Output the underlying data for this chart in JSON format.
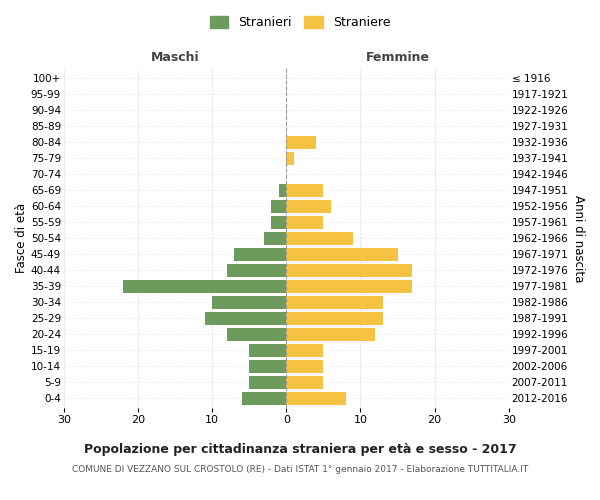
{
  "age_groups": [
    "100+",
    "95-99",
    "90-94",
    "85-89",
    "80-84",
    "75-79",
    "70-74",
    "65-69",
    "60-64",
    "55-59",
    "50-54",
    "45-49",
    "40-44",
    "35-39",
    "30-34",
    "25-29",
    "20-24",
    "15-19",
    "10-14",
    "5-9",
    "0-4"
  ],
  "birth_years": [
    "≤ 1916",
    "1917-1921",
    "1922-1926",
    "1927-1931",
    "1932-1936",
    "1937-1941",
    "1942-1946",
    "1947-1951",
    "1952-1956",
    "1957-1961",
    "1962-1966",
    "1967-1971",
    "1972-1976",
    "1977-1981",
    "1982-1986",
    "1987-1991",
    "1992-1996",
    "1997-2001",
    "2002-2006",
    "2007-2011",
    "2012-2016"
  ],
  "males": [
    0,
    0,
    0,
    0,
    0,
    0,
    0,
    1,
    2,
    2,
    3,
    7,
    8,
    22,
    10,
    11,
    8,
    5,
    5,
    5,
    6
  ],
  "females": [
    0,
    0,
    0,
    0,
    4,
    1,
    0,
    5,
    6,
    5,
    9,
    15,
    17,
    17,
    13,
    13,
    12,
    5,
    5,
    5,
    8
  ],
  "male_color": "#6d9b5e",
  "female_color": "#f5c242",
  "title": "Popolazione per cittadinanza straniera per età e sesso - 2017",
  "subtitle": "COMUNE DI VEZZANO SUL CROSTOLO (RE) - Dati ISTAT 1° gennaio 2017 - Elaborazione TUTTITALIA.IT",
  "xlabel_left": "Maschi",
  "xlabel_right": "Femmine",
  "ylabel_left": "Fasce di età",
  "ylabel_right": "Anni di nascita",
  "xlim": 30,
  "legend_labels": [
    "Stranieri",
    "Straniere"
  ],
  "background_color": "#ffffff",
  "grid_color": "#cccccc"
}
